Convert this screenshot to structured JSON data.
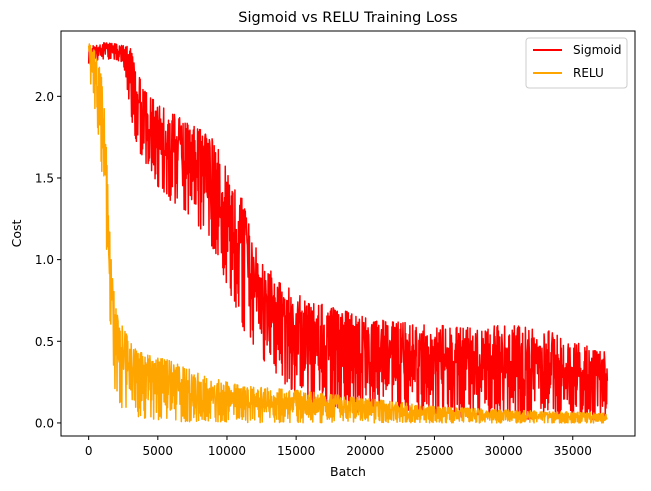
{
  "chart_data": {
    "type": "line",
    "title": "Sigmoid vs RELU Training Loss",
    "xlabel": "Batch",
    "ylabel": "Cost",
    "xlim": [
      -2000,
      39500
    ],
    "ylim": [
      -0.08,
      2.4
    ],
    "xticks": [
      0,
      5000,
      10000,
      15000,
      20000,
      25000,
      30000,
      35000
    ],
    "xtick_labels": [
      "0",
      "5000",
      "10000",
      "15000",
      "20000",
      "25000",
      "30000",
      "35000"
    ],
    "yticks": [
      0.0,
      0.5,
      1.0,
      1.5,
      2.0
    ],
    "ytick_labels": [
      "0.0",
      "0.5",
      "1.0",
      "1.5",
      "2.0"
    ],
    "grid": false,
    "legend_position": "top-right",
    "series": [
      {
        "name": "Sigmoid",
        "color": "#ff0000",
        "x": [
          0,
          1000,
          2000,
          2500,
          3000,
          3500,
          4000,
          5000,
          6000,
          7000,
          8000,
          9000,
          10000,
          11000,
          12000,
          13000,
          14000,
          15000,
          16000,
          18000,
          20000,
          22000,
          25000,
          28000,
          30000,
          33000,
          35000,
          37500
        ],
        "lower": [
          2.2,
          2.22,
          2.22,
          2.2,
          1.9,
          1.7,
          1.55,
          1.45,
          1.35,
          1.3,
          1.2,
          1.05,
          0.85,
          0.6,
          0.45,
          0.35,
          0.25,
          0.18,
          0.12,
          0.08,
          0.06,
          0.05,
          0.04,
          0.03,
          0.03,
          0.02,
          0.02,
          0.02
        ],
        "upper": [
          2.32,
          2.33,
          2.32,
          2.32,
          2.3,
          2.15,
          2.05,
          1.95,
          1.9,
          1.85,
          1.8,
          1.75,
          1.55,
          1.4,
          1.1,
          0.95,
          0.85,
          0.8,
          0.75,
          0.7,
          0.65,
          0.62,
          0.6,
          0.58,
          0.6,
          0.58,
          0.5,
          0.43
        ]
      },
      {
        "name": "RELU",
        "color": "#ffa500",
        "x": [
          0,
          300,
          600,
          900,
          1200,
          1500,
          1800,
          2000,
          2500,
          3000,
          4000,
          5000,
          6000,
          8000,
          10000,
          12000,
          15000,
          20000,
          25000,
          30000,
          37500
        ],
        "lower": [
          2.15,
          2.0,
          1.85,
          1.6,
          1.2,
          0.7,
          0.25,
          0.15,
          0.08,
          0.05,
          0.03,
          0.02,
          0.01,
          0.005,
          0.003,
          0.002,
          0.001,
          0.0,
          0.0,
          0.0,
          0.0
        ],
        "upper": [
          2.33,
          2.3,
          2.25,
          2.15,
          1.85,
          1.2,
          0.82,
          0.7,
          0.58,
          0.5,
          0.42,
          0.4,
          0.38,
          0.3,
          0.25,
          0.22,
          0.2,
          0.15,
          0.1,
          0.08,
          0.06
        ]
      }
    ]
  }
}
